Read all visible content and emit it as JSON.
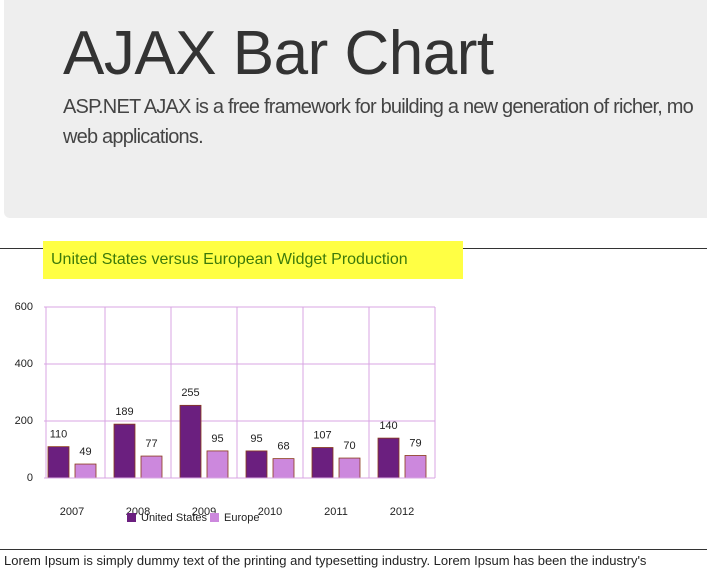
{
  "header": {
    "title": "AJAX Bar Chart",
    "subtitle_lines": [
      "ASP.NET AJAX is a free framework for building a new generation of richer, mo",
      "web applications."
    ]
  },
  "chart_data": {
    "type": "bar",
    "title": "United States versus European Widget Production",
    "categories": [
      "2007",
      "2008",
      "2009",
      "2010",
      "2011",
      "2012"
    ],
    "series": [
      {
        "name": "United States",
        "color": "#6b1f7f",
        "values": [
          110,
          189,
          255,
          95,
          107,
          140
        ]
      },
      {
        "name": "Europe",
        "color": "#cc88dd",
        "values": [
          49,
          77,
          95,
          68,
          70,
          79
        ]
      }
    ],
    "ylim": [
      0,
      600
    ],
    "yticks": [
      0,
      200,
      400,
      600
    ],
    "grid": true,
    "grid_color": "#d9a6e3"
  },
  "body": {
    "text": "Lorem Ipsum is simply dummy text of the printing and typesetting industry. Lorem Ipsum has been the industry's"
  }
}
